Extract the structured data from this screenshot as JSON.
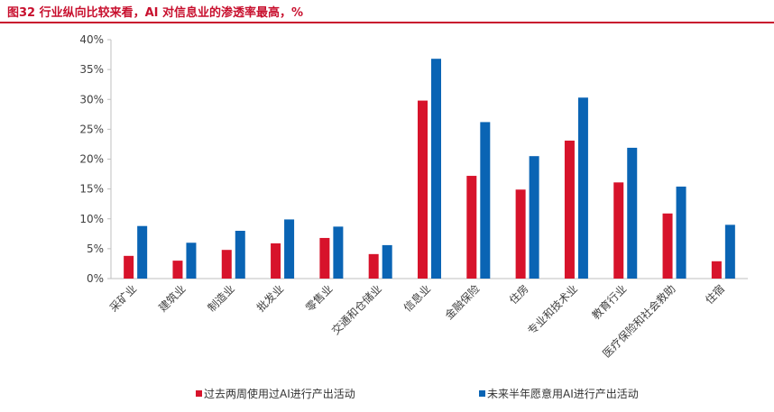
{
  "figure": {
    "title": "图32 行业纵向比较来看，AI 对信息业的渗透率最高，%"
  },
  "chart_data": {
    "type": "bar",
    "title": "",
    "xlabel": "",
    "ylabel": "",
    "ylim": [
      0,
      40
    ],
    "yticks": [
      "0%",
      "5%",
      "10%",
      "15%",
      "20%",
      "25%",
      "30%",
      "35%",
      "40%"
    ],
    "yunit": "%",
    "grid": false,
    "legend_position": "bottom",
    "categories": [
      "采矿业",
      "建筑业",
      "制造业",
      "批发业",
      "零售业",
      "交通和仓储业",
      "信息业",
      "金融保险",
      "住房",
      "专业和技术业",
      "教育行业",
      "医疗保险和社会救助",
      "住宿"
    ],
    "series": [
      {
        "name": "过去两周使用过AI进行产出活动",
        "color": "#d7132b",
        "values": [
          3.8,
          3.0,
          4.8,
          5.9,
          6.8,
          4.1,
          29.8,
          17.2,
          14.9,
          23.1,
          16.1,
          10.9,
          2.9
        ]
      },
      {
        "name": "未来半年愿意用AI进行产出活动",
        "color": "#0a64b4",
        "values": [
          8.8,
          6.0,
          8.0,
          9.9,
          8.7,
          5.6,
          36.8,
          26.2,
          20.5,
          30.3,
          21.9,
          15.4,
          9.0
        ]
      }
    ]
  }
}
